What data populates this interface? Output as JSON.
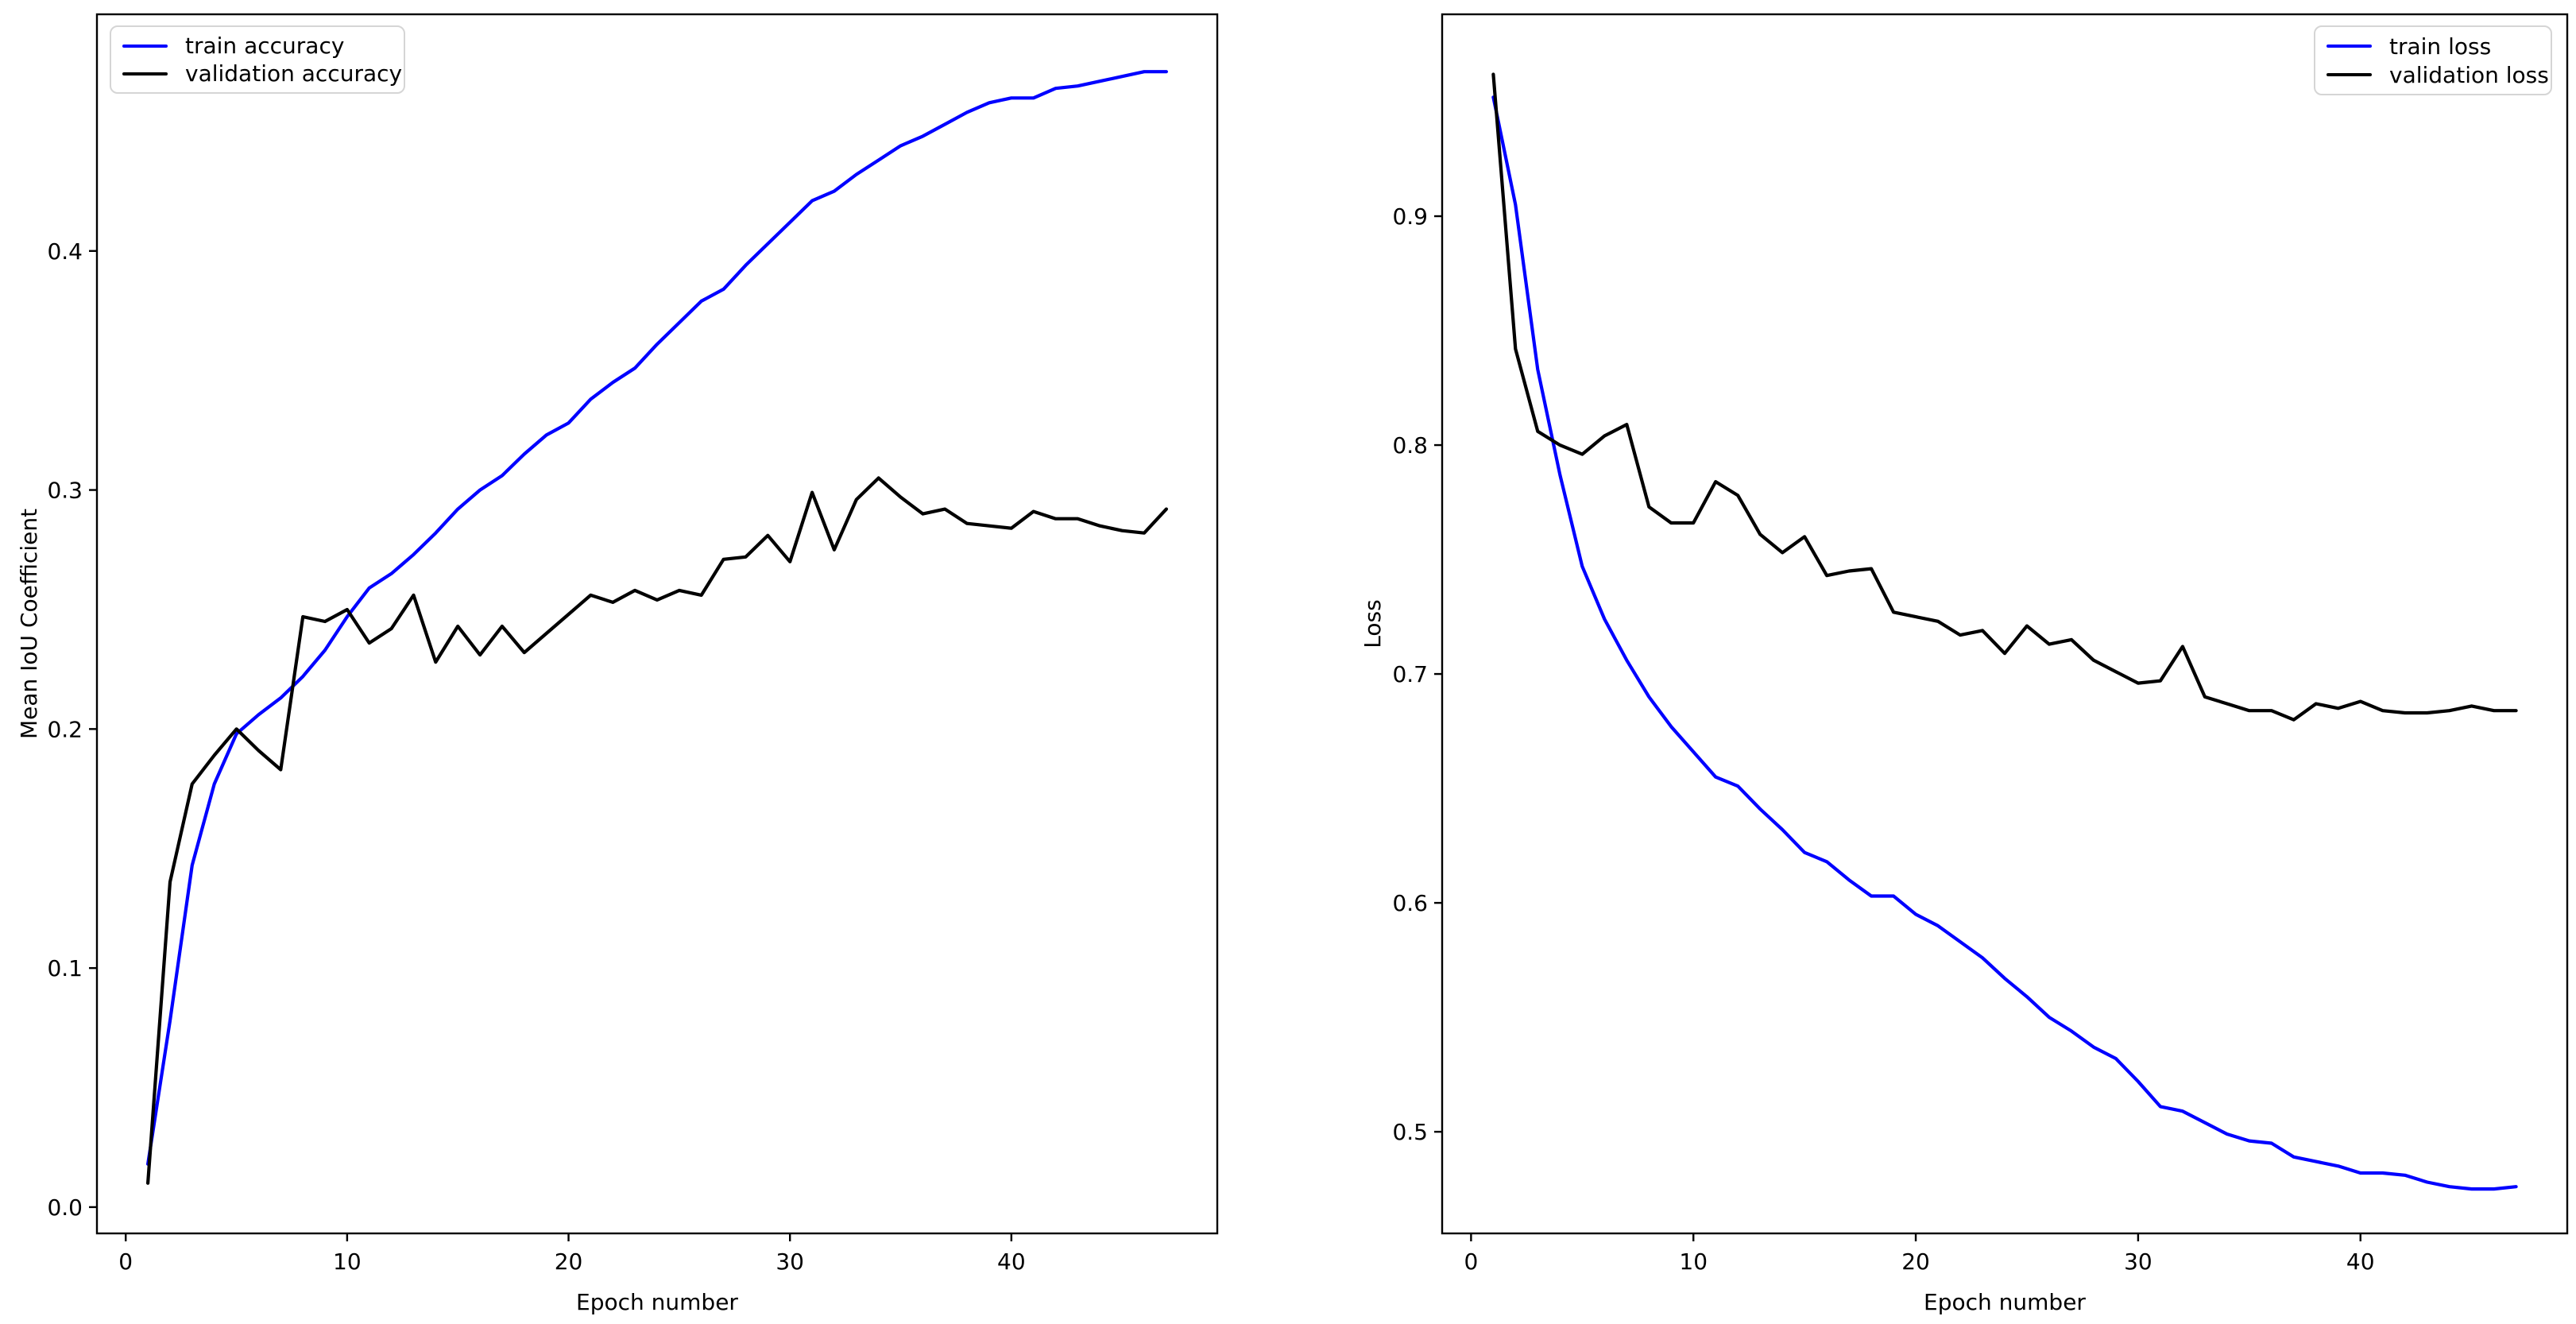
{
  "figure": {
    "background": "#ffffff"
  },
  "chart_data": [
    {
      "type": "line",
      "title": "",
      "xlabel": "Epoch number",
      "ylabel": "Mean IoU Coefficient",
      "grid": false,
      "xlim": [
        -1.3,
        49.3
      ],
      "ylim": [
        -0.011,
        0.499
      ],
      "xticks": {
        "values": [
          0,
          10,
          20,
          30,
          40
        ],
        "labels": [
          "0",
          "10",
          "20",
          "30",
          "40"
        ]
      },
      "yticks": {
        "values": [
          0.0,
          0.1,
          0.2,
          0.3,
          0.4
        ],
        "labels": [
          "0.0",
          "0.1",
          "0.2",
          "0.3",
          "0.4"
        ]
      },
      "legend": {
        "position": "upper-left"
      },
      "x": [
        1,
        2,
        3,
        4,
        5,
        6,
        7,
        8,
        9,
        10,
        11,
        12,
        13,
        14,
        15,
        16,
        17,
        18,
        19,
        20,
        21,
        22,
        23,
        24,
        25,
        26,
        27,
        28,
        29,
        30,
        31,
        32,
        33,
        34,
        35,
        36,
        37,
        38,
        39,
        40,
        41,
        42,
        43,
        44,
        45,
        46,
        47
      ],
      "series": [
        {
          "name": "train accuracy",
          "color": "#0000ff",
          "values": [
            0.018,
            0.078,
            0.143,
            0.177,
            0.198,
            0.206,
            0.213,
            0.222,
            0.233,
            0.247,
            0.259,
            0.265,
            0.273,
            0.282,
            0.292,
            0.3,
            0.306,
            0.315,
            0.323,
            0.328,
            0.338,
            0.345,
            0.351,
            0.361,
            0.37,
            0.379,
            0.384,
            0.394,
            0.403,
            0.412,
            0.421,
            0.425,
            0.432,
            0.438,
            0.444,
            0.448,
            0.453,
            0.458,
            0.462,
            0.464,
            0.464,
            0.468,
            0.469,
            0.471,
            0.473,
            0.475,
            0.475
          ]
        },
        {
          "name": "validation accuracy",
          "color": "#000000",
          "values": [
            0.01,
            0.136,
            0.177,
            0.189,
            0.2,
            0.191,
            0.183,
            0.247,
            0.245,
            0.25,
            0.236,
            0.242,
            0.256,
            0.228,
            0.243,
            0.231,
            0.243,
            0.232,
            0.24,
            0.248,
            0.256,
            0.253,
            0.258,
            0.254,
            0.258,
            0.256,
            0.271,
            0.272,
            0.281,
            0.27,
            0.299,
            0.275,
            0.296,
            0.305,
            0.297,
            0.29,
            0.292,
            0.286,
            0.285,
            0.284,
            0.291,
            0.288,
            0.288,
            0.285,
            0.283,
            0.282,
            0.292
          ]
        }
      ]
    },
    {
      "type": "line",
      "title": "",
      "xlabel": "Epoch number",
      "ylabel": "Loss",
      "grid": false,
      "xlim": [
        -1.3,
        49.3
      ],
      "ylim": [
        0.4556,
        0.9882
      ],
      "xticks": {
        "values": [
          0,
          10,
          20,
          30,
          40
        ],
        "labels": [
          "0",
          "10",
          "20",
          "30",
          "40"
        ]
      },
      "yticks": {
        "values": [
          0.5,
          0.6,
          0.7,
          0.8,
          0.9
        ],
        "labels": [
          "0.5",
          "0.6",
          "0.7",
          "0.8",
          "0.9"
        ]
      },
      "legend": {
        "position": "upper-right"
      },
      "x": [
        1,
        2,
        3,
        4,
        5,
        6,
        7,
        8,
        9,
        10,
        11,
        12,
        13,
        14,
        15,
        16,
        17,
        18,
        19,
        20,
        21,
        22,
        23,
        24,
        25,
        26,
        27,
        28,
        29,
        30,
        31,
        32,
        33,
        34,
        35,
        36,
        37,
        38,
        39,
        40,
        41,
        42,
        43,
        44,
        45,
        46,
        47
      ],
      "series": [
        {
          "name": "train loss",
          "color": "#0000ff",
          "values": [
            0.952,
            0.905,
            0.833,
            0.787,
            0.747,
            0.724,
            0.706,
            0.69,
            0.677,
            0.666,
            0.655,
            0.651,
            0.641,
            0.632,
            0.622,
            0.618,
            0.61,
            0.603,
            0.603,
            0.595,
            0.59,
            0.583,
            0.576,
            0.567,
            0.559,
            0.55,
            0.544,
            0.537,
            0.532,
            0.522,
            0.511,
            0.509,
            0.504,
            0.499,
            0.496,
            0.495,
            0.489,
            0.487,
            0.485,
            0.482,
            0.482,
            0.481,
            0.478,
            0.476,
            0.475,
            0.475,
            0.476
          ]
        },
        {
          "name": "validation loss",
          "color": "#000000",
          "values": [
            0.962,
            0.842,
            0.806,
            0.8,
            0.796,
            0.804,
            0.809,
            0.773,
            0.766,
            0.766,
            0.784,
            0.778,
            0.761,
            0.753,
            0.76,
            0.743,
            0.745,
            0.746,
            0.727,
            0.725,
            0.723,
            0.717,
            0.719,
            0.709,
            0.721,
            0.713,
            0.715,
            0.706,
            0.701,
            0.696,
            0.697,
            0.712,
            0.69,
            0.687,
            0.684,
            0.684,
            0.68,
            0.687,
            0.685,
            0.688,
            0.684,
            0.683,
            0.683,
            0.684,
            0.686,
            0.684,
            0.684
          ]
        }
      ]
    }
  ]
}
